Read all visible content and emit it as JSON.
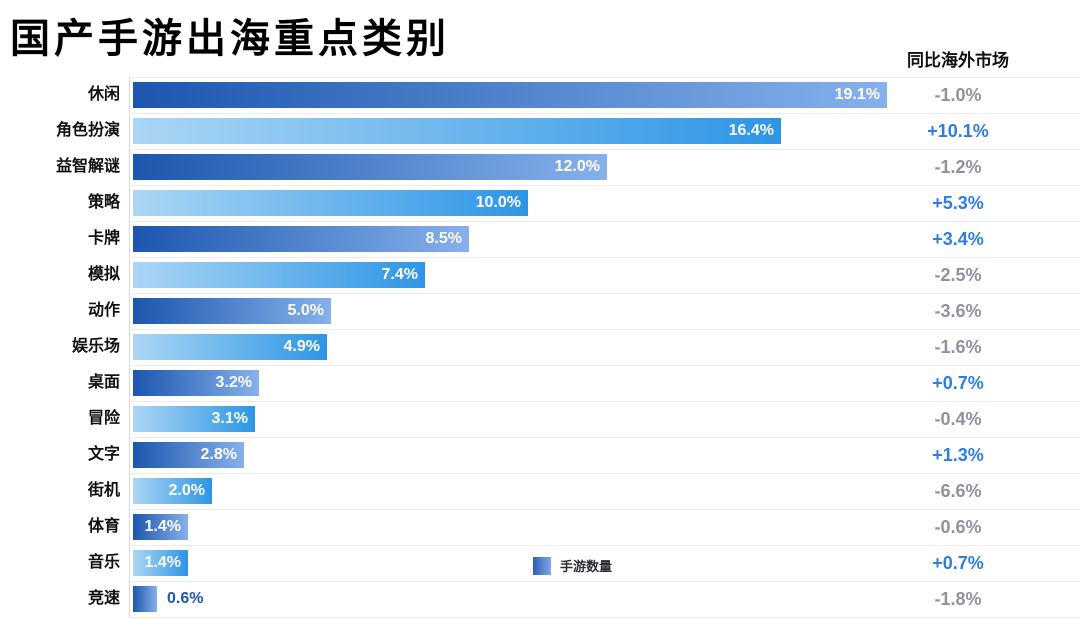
{
  "title": "国产手游出海重点类别",
  "yoy_header": "同比海外市场",
  "legend": {
    "label": "手游数量"
  },
  "colors": {
    "dark_bar_start": "#1d56ad",
    "dark_bar_end": "#86b1eb",
    "light_bar_start": "#abd6f4",
    "light_bar_end": "#2d95e6",
    "positive_value": "#2f7ce2",
    "negative_value": "#8e939b",
    "bar_label": "#ffffff",
    "outside_bar_label": "#1c57b0"
  },
  "chart_data": {
    "type": "bar",
    "orientation": "horizontal",
    "title": "国产手游出海重点类别",
    "right_column_header": "同比海外市场",
    "legend": [
      "手游数量"
    ],
    "legend_position": "bottom-center",
    "grid": "row-separators",
    "xlim": [
      0,
      19.55
    ],
    "categories": [
      "休闲",
      "角色扮演",
      "益智解谜",
      "策略",
      "卡牌",
      "模拟",
      "动作",
      "娱乐场",
      "桌面",
      "冒险",
      "文字",
      "街机",
      "体育",
      "音乐",
      "竞速"
    ],
    "series": [
      {
        "name": "手游数量",
        "values": [
          19.1,
          16.4,
          12.0,
          10.0,
          8.5,
          7.4,
          5.0,
          4.9,
          3.2,
          3.1,
          2.8,
          2.0,
          1.4,
          1.4,
          0.6
        ]
      }
    ],
    "value_labels": [
      "19.1%",
      "16.4%",
      "12.0%",
      "10.0%",
      "8.5%",
      "7.4%",
      "5.0%",
      "4.9%",
      "3.2%",
      "3.1%",
      "2.8%",
      "2.0%",
      "1.4%",
      "1.4%",
      "0.6%"
    ],
    "yoy_labels": [
      "-1.0%",
      "+10.1%",
      "-1.2%",
      "+5.3%",
      "+3.4%",
      "-2.5%",
      "-3.6%",
      "-1.6%",
      "+0.7%",
      "-0.4%",
      "+1.3%",
      "-6.6%",
      "-0.6%",
      "+0.7%",
      "-1.8%"
    ]
  }
}
